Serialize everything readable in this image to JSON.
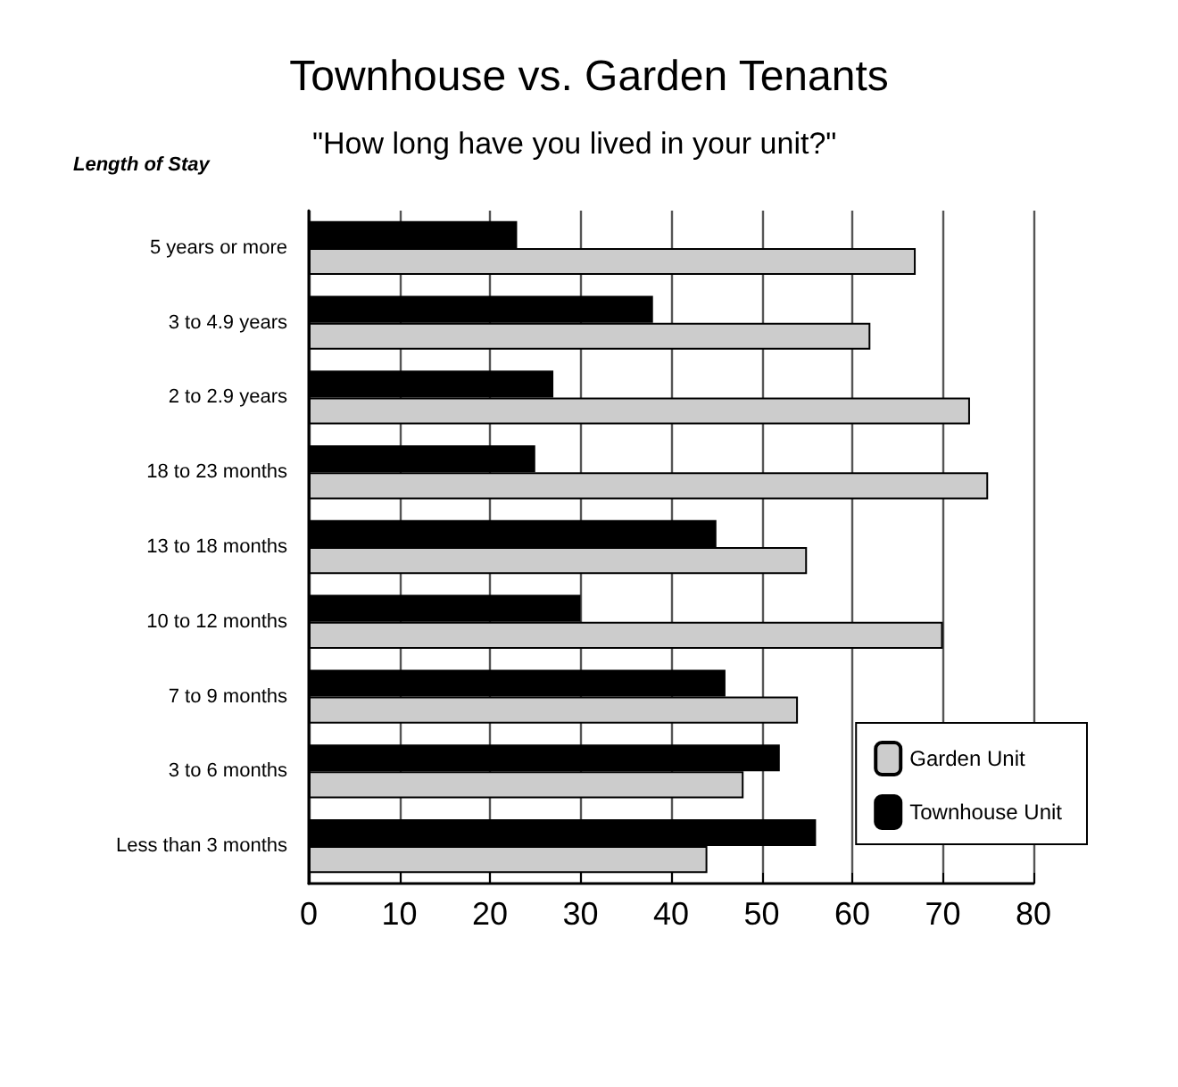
{
  "chart_data": {
    "type": "bar",
    "orientation": "horizontal",
    "title": "Townhouse vs. Garden Tenants",
    "subtitle": "\"How long have you lived in your unit?\"",
    "ylabel": "Length of Stay",
    "categories": [
      "5 years or more",
      "3 to 4.9 years",
      "2 to 2.9 years",
      "18 to 23 months",
      "13 to 18 months",
      "10 to 12 months",
      "7 to 9 months",
      "3 to 6 months",
      "Less than 3 months"
    ],
    "series": [
      {
        "name": "Garden Unit",
        "color": "#cccccc",
        "values": [
          67,
          62,
          73,
          75,
          55,
          70,
          54,
          48,
          44
        ]
      },
      {
        "name": "Townhouse Unit",
        "color": "#000000",
        "values": [
          23,
          38,
          27,
          25,
          45,
          30,
          46,
          52,
          56
        ]
      }
    ],
    "xlim": [
      0,
      80
    ],
    "xticks": [
      0,
      10,
      20,
      30,
      40,
      50,
      60,
      70,
      80
    ],
    "grid": "x",
    "legend": "bottom right"
  }
}
